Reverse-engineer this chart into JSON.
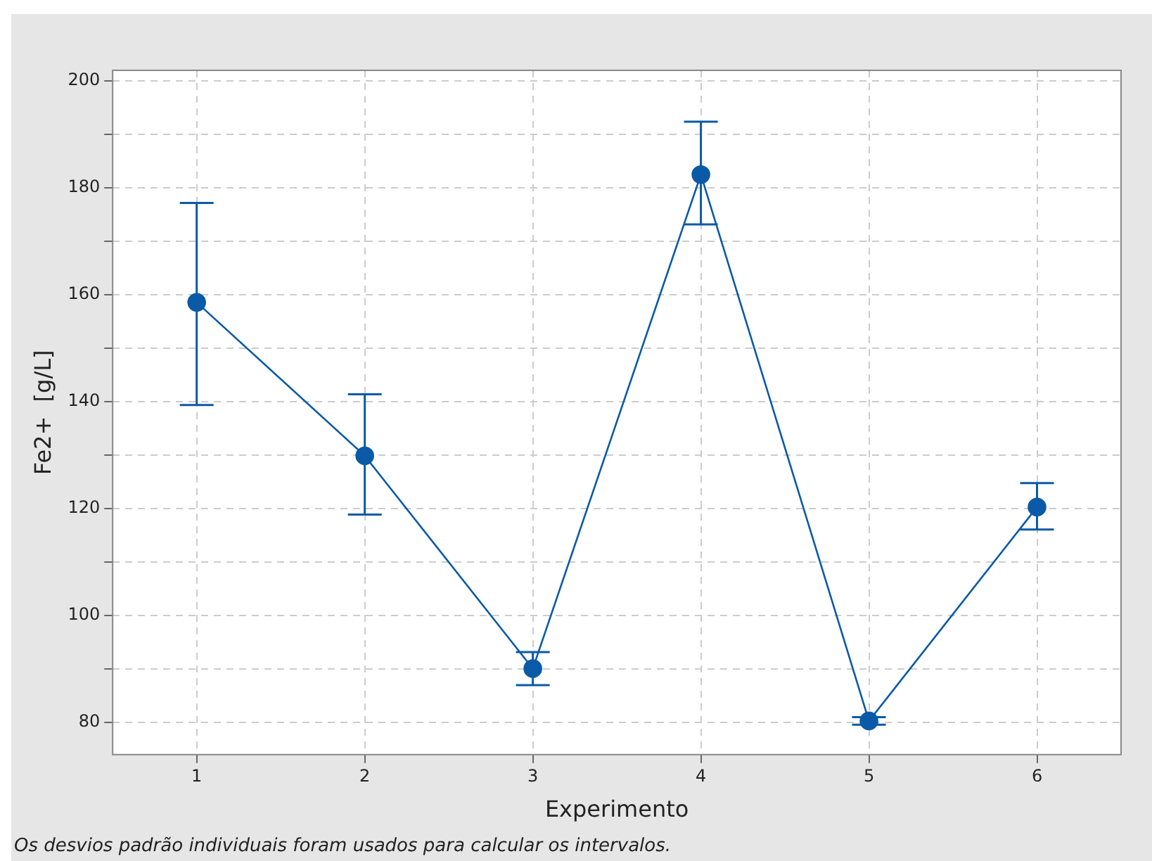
{
  "chart_data": {
    "type": "line",
    "xlabel": "Experimento",
    "ylabel": "Fe2+  [g/L]",
    "x": [
      1,
      2,
      3,
      4,
      5,
      6
    ],
    "series": [
      {
        "color": "#0b5aa8",
        "values": [
          158.6,
          129.9,
          90.1,
          182.5,
          80.3,
          120.3
        ],
        "errors": [
          [
            139.4,
            177.2
          ],
          [
            118.9,
            141.4
          ],
          [
            87.0,
            93.2
          ],
          [
            173.2,
            192.4
          ],
          [
            79.6,
            81.0
          ],
          [
            116.1,
            124.8
          ]
        ]
      }
    ],
    "xlim": [
      0.5,
      6.5
    ],
    "xticks": [
      1,
      2,
      3,
      4,
      5,
      6
    ],
    "ylim": [
      74,
      202
    ],
    "yticks": [
      80,
      {
        "value": 90,
        "label": null
      },
      100,
      {
        "value": 110,
        "label": null
      },
      120,
      {
        "value": 130,
        "label": null
      },
      140,
      {
        "value": 150,
        "label": null
      },
      160,
      {
        "value": 170,
        "label": null
      },
      180,
      {
        "value": 190,
        "label": null
      },
      200
    ],
    "grid": true,
    "marker": "circle",
    "line_style": "solid",
    "legend": false,
    "annotations": [
      "Os desvios padrão individuais foram usados para calcular os intervalos."
    ]
  }
}
